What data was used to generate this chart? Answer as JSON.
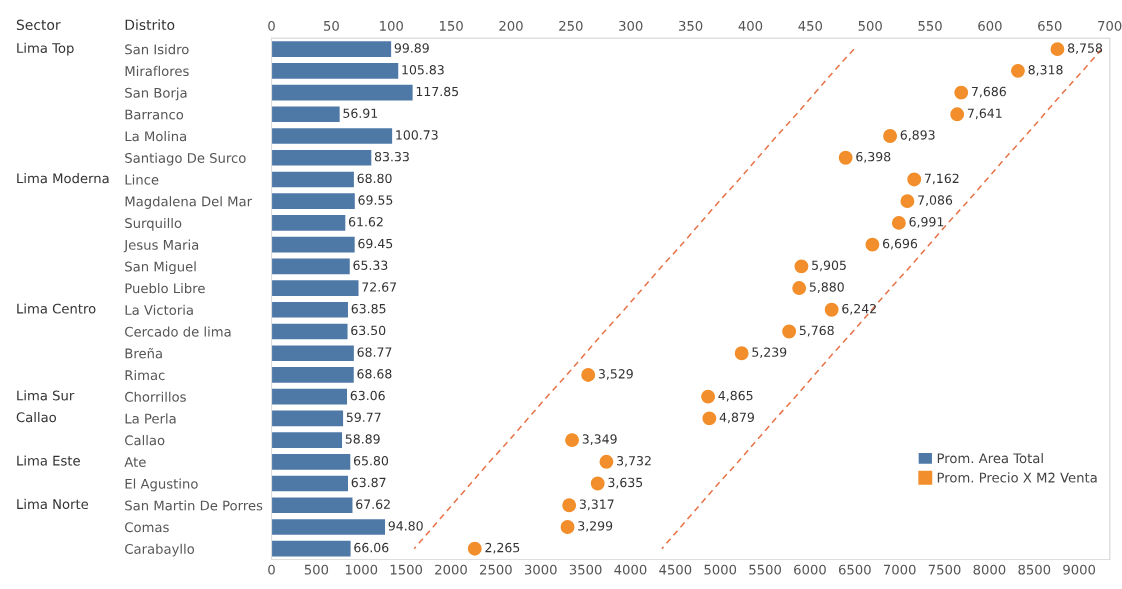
{
  "chart_data": {
    "type": "bar",
    "orientation": "horizontal",
    "categories": [
      "San Isidro",
      "Miraflores",
      "San Borja",
      "Barranco",
      "La Molina",
      "Santiago De Surco",
      "Lince",
      "Magdalena Del Mar",
      "Surquillo",
      "Jesus Maria",
      "San Miguel",
      "Pueblo Libre",
      "La Victoria",
      "Cercado de lima",
      "Breña",
      "Rimac",
      "Chorrillos",
      "La Perla",
      "Callao",
      "Ate",
      "El Agustino",
      "San Martin De Porres",
      "Comas",
      "Carabayllo"
    ],
    "series": [
      {
        "name": "Prom. Area Total",
        "axis": "x2",
        "color": "#4e79a7",
        "values": [
          99.89,
          105.83,
          117.85,
          56.91,
          100.73,
          83.33,
          68.8,
          69.55,
          61.62,
          69.45,
          65.33,
          72.67,
          63.85,
          63.5,
          68.77,
          68.68,
          63.06,
          59.77,
          58.89,
          65.8,
          63.87,
          67.62,
          94.8,
          66.06
        ],
        "value_labels": [
          "99.89",
          "105.83",
          "117.85",
          "56.91",
          "100.73",
          "83.33",
          "68.80",
          "69.55",
          "61.62",
          "69.45",
          "65.33",
          "72.67",
          "63.85",
          "63.50",
          "68.77",
          "68.68",
          "63.06",
          "59.77",
          "58.89",
          "65.80",
          "63.87",
          "67.62",
          "94.80",
          "66.06"
        ]
      },
      {
        "name": "Prom. Precio X M2 Venta",
        "type": "scatter",
        "marker": "circle",
        "color": "#f28e2b",
        "values": [
          8758,
          8318,
          7686,
          7641,
          6893,
          6398,
          7162,
          7086,
          6991,
          6696,
          5905,
          5880,
          6242,
          5768,
          5239,
          3529,
          4865,
          4879,
          3349,
          3732,
          3635,
          3317,
          3299,
          2265
        ],
        "value_labels": [
          "8,758",
          "8,318",
          "7,686",
          "7,641",
          "6,893",
          "6,398",
          "7,162",
          "7,086",
          "6,991",
          "6,696",
          "5,905",
          "5,880",
          "6,242",
          "5,768",
          "5,239",
          "3,529",
          "4,865",
          "4,879",
          "3,349",
          "3,732",
          "3,635",
          "3,317",
          "3,299",
          "2,265"
        ]
      },
      {
        "type": "line",
        "color": "#e8734a",
        "line_style": "dashed",
        "marker": "none",
        "values": [
          6490,
          6270,
          6060,
          5850,
          5630,
          5420,
          5210,
          4990,
          4780,
          4570,
          4350,
          4140,
          3930,
          3710,
          3500,
          3290,
          3070,
          2860,
          2650,
          2430,
          2220,
          2010,
          1800,
          1590
        ]
      },
      {
        "type": "line",
        "color": "#e8734a",
        "line_style": "dashed",
        "marker": "none",
        "values": [
          9250,
          9040,
          8820,
          8610,
          8400,
          8180,
          7970,
          7760,
          7540,
          7330,
          7120,
          6900,
          6690,
          6480,
          6260,
          6050,
          5840,
          5620,
          5410,
          5200,
          4980,
          4770,
          4560,
          4350
        ]
      }
    ],
    "xlim": [
      0,
      9340
    ],
    "xticks": [
      0,
      500,
      1000,
      1500,
      2000,
      2500,
      3000,
      3500,
      4000,
      4500,
      5000,
      5500,
      6000,
      6500,
      7000,
      7500,
      8000,
      8500,
      9000
    ],
    "x2lim": [
      0,
      700
    ],
    "x2ticks": [
      0,
      50,
      100,
      150,
      200,
      250,
      300,
      350,
      400,
      450,
      500,
      550,
      600,
      650,
      700
    ],
    "legend": "bottom right",
    "annotations": [
      "Sector",
      "Distrito",
      "Lima Top",
      "Lima Moderna",
      "Lima Centro",
      "Lima Sur",
      "Callao",
      "Lima Este",
      "Lima Norte"
    ]
  }
}
